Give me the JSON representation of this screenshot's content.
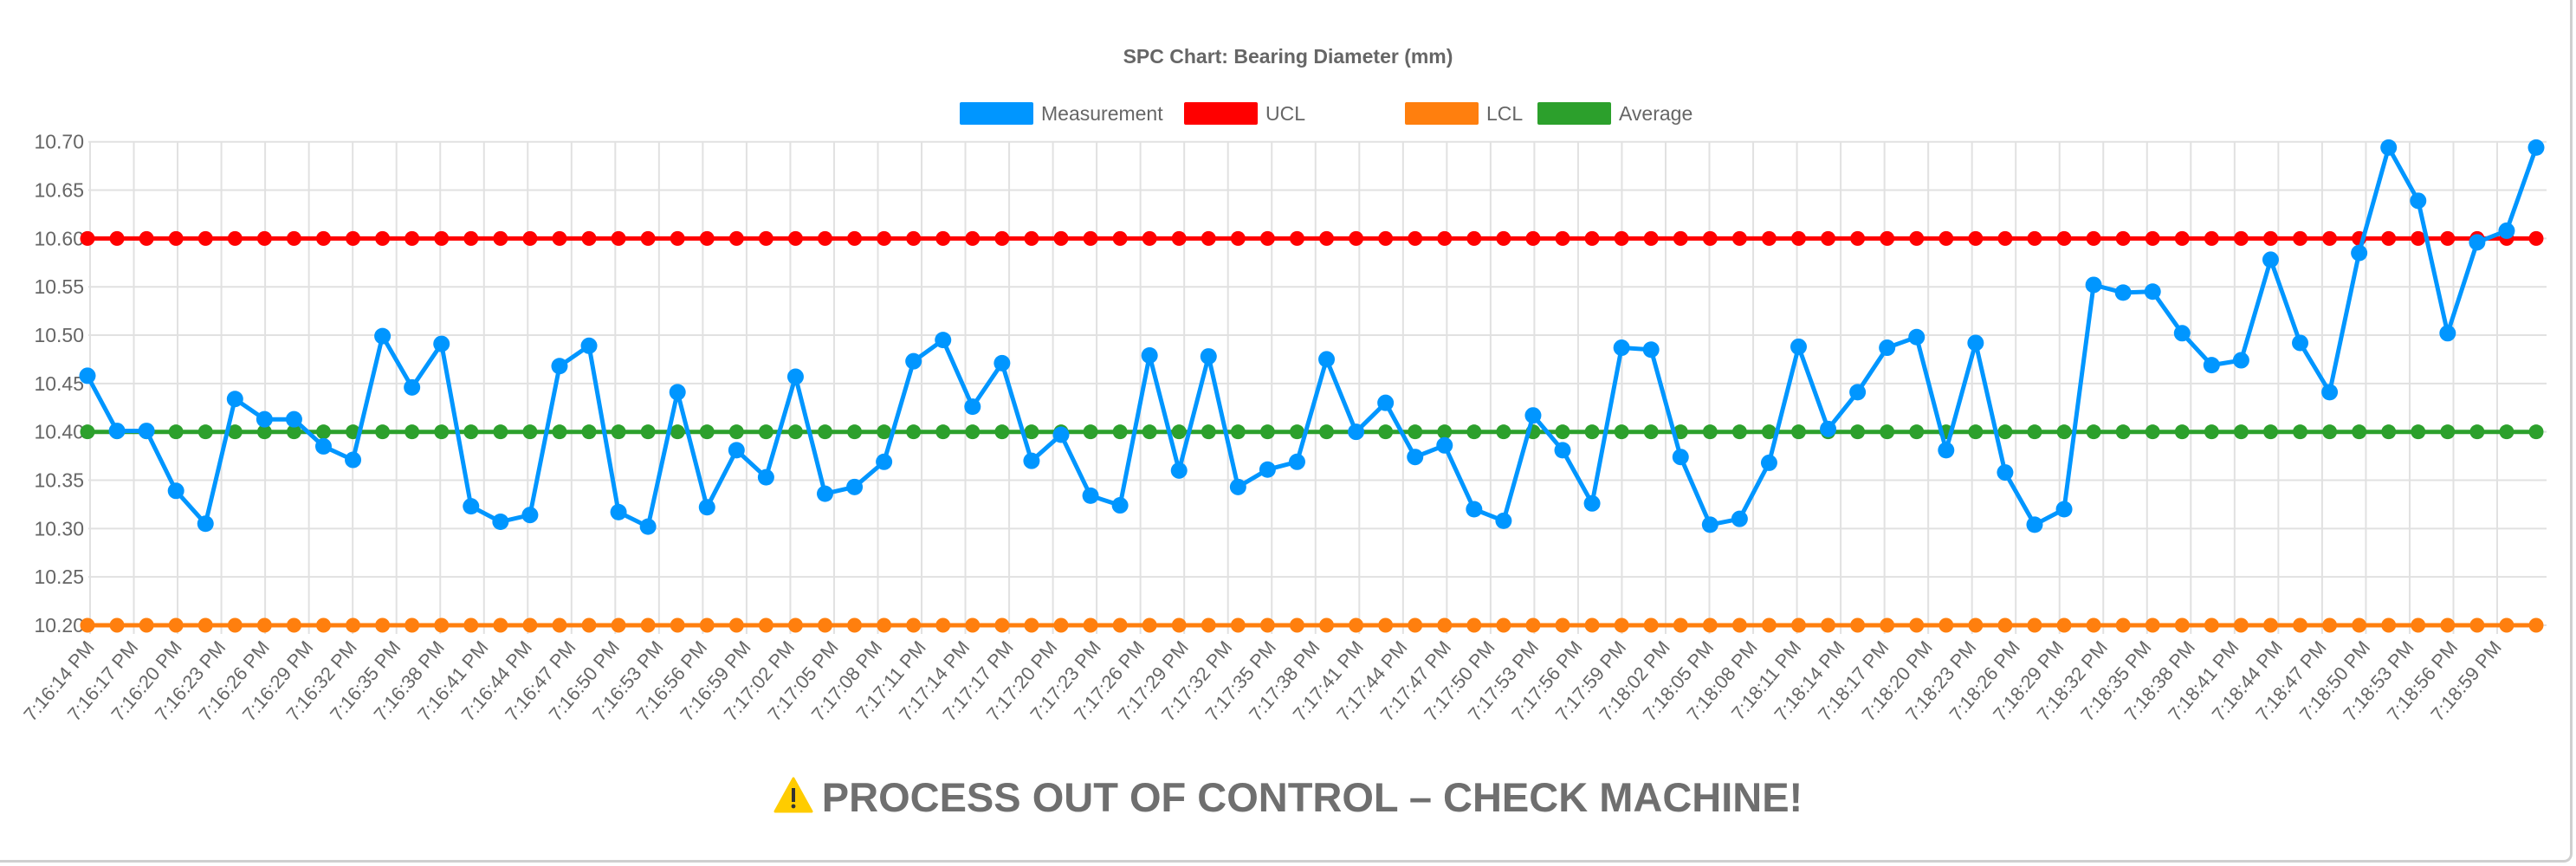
{
  "chart_data": {
    "type": "line",
    "title": "SPC Chart: Bearing Diameter (mm)",
    "xlabel": "",
    "ylabel": "",
    "ylim": [
      10.2,
      10.7
    ],
    "y_ticks": [
      "10.70",
      "10.65",
      "10.60",
      "10.55",
      "10.50",
      "10.45",
      "10.40",
      "10.35",
      "10.30",
      "10.25",
      "10.20"
    ],
    "x_tick_labels": [
      "7:16:14 PM",
      "7:16:17 PM",
      "7:16:20 PM",
      "7:16:23 PM",
      "7:16:26 PM",
      "7:16:29 PM",
      "7:16:32 PM",
      "7:16:35 PM",
      "7:16:38 PM",
      "7:16:41 PM",
      "7:16:44 PM",
      "7:16:47 PM",
      "7:16:50 PM",
      "7:16:53 PM",
      "7:16:56 PM",
      "7:16:59 PM",
      "7:17:02 PM",
      "7:17:05 PM",
      "7:17:08 PM",
      "7:17:11 PM",
      "7:17:14 PM",
      "7:17:17 PM",
      "7:17:20 PM",
      "7:17:23 PM",
      "7:17:26 PM",
      "7:17:29 PM",
      "7:17:32 PM",
      "7:17:35 PM",
      "7:17:38 PM",
      "7:17:41 PM",
      "7:17:44 PM",
      "7:17:47 PM",
      "7:17:50 PM",
      "7:17:53 PM",
      "7:17:56 PM",
      "7:17:59 PM",
      "7:18:02 PM",
      "7:18:05 PM",
      "7:18:08 PM",
      "7:18:11 PM",
      "7:18:14 PM",
      "7:18:17 PM",
      "7:18:20 PM",
      "7:18:23 PM",
      "7:18:26 PM",
      "7:18:29 PM",
      "7:18:32 PM",
      "7:18:35 PM",
      "7:18:38 PM",
      "7:18:41 PM",
      "7:18:44 PM",
      "7:18:47 PM",
      "7:18:50 PM",
      "7:18:53 PM",
      "7:18:56 PM",
      "7:18:59 PM"
    ],
    "grid": true,
    "legend_position": "top",
    "series": [
      {
        "name": "Measurement",
        "color": "#0096ff",
        "values": [
          10.458,
          10.401,
          10.401,
          10.339,
          10.305,
          10.434,
          10.413,
          10.413,
          10.385,
          10.371,
          10.499,
          10.446,
          10.491,
          10.323,
          10.307,
          10.314,
          10.468,
          10.489,
          10.317,
          10.302,
          10.441,
          10.322,
          10.381,
          10.353,
          10.457,
          10.336,
          10.343,
          10.369,
          10.473,
          10.495,
          10.426,
          10.471,
          10.37,
          10.397,
          10.334,
          10.324,
          10.479,
          10.36,
          10.478,
          10.343,
          10.361,
          10.369,
          10.475,
          10.4,
          10.43,
          10.374,
          10.386,
          10.32,
          10.308,
          10.417,
          10.381,
          10.326,
          10.487,
          10.485,
          10.374,
          10.304,
          10.31,
          10.368,
          10.488,
          10.403,
          10.441,
          10.487,
          10.498,
          10.381,
          10.492,
          10.358,
          10.304,
          10.32,
          10.552,
          10.544,
          10.545,
          10.502,
          10.469,
          10.474,
          10.578,
          10.492,
          10.441,
          10.585,
          10.694,
          10.639,
          10.502,
          10.596,
          10.608,
          10.694
        ]
      },
      {
        "name": "UCL",
        "color": "#ff0000",
        "constant": 10.6
      },
      {
        "name": "LCL",
        "color": "#ff7f0e",
        "constant": 10.2
      },
      {
        "name": "Average",
        "color": "#2ca02c",
        "constant": 10.4
      }
    ]
  },
  "alert": {
    "icon": "warning-icon",
    "text": "PROCESS OUT OF CONTROL – CHECK MACHINE!",
    "icon_color": "#ffcc00",
    "text_color": "#6f6f6f"
  }
}
